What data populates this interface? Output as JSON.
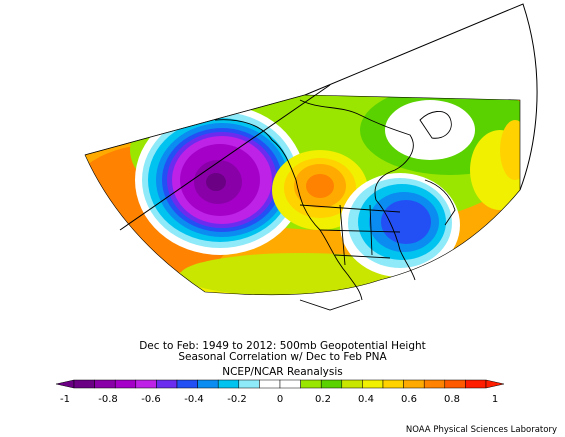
{
  "figure": {
    "title_line1": "Dec to Feb: 1949 to 2012: 500mb Geopotential Height",
    "title_line2": "Seasonal Correlation w/ Dec to Feb PNA",
    "dataset": "NCEP/NCAR Reanalysis",
    "credit": "NOAA Physical Sciences Laboratory"
  },
  "colorbar": {
    "min": -1,
    "max": 1,
    "step": 0.1,
    "tick_labels": [
      "-1",
      "-0.8",
      "-0.6",
      "-0.4",
      "-0.2",
      "0",
      "0.2",
      "0.4",
      "0.6",
      "0.8",
      "1"
    ],
    "colors": [
      "#6b0085",
      "#8a00a8",
      "#a400c8",
      "#bd22e6",
      "#6c2cf0",
      "#2350f5",
      "#0a8cf0",
      "#00c3f0",
      "#8eeaf8",
      "#ffffff",
      "#ffffff",
      "#9ae600",
      "#5ad200",
      "#c8e600",
      "#f0f000",
      "#ffd200",
      "#ffaa00",
      "#ff8200",
      "#ff5a00",
      "#ff1e00"
    ]
  },
  "map": {
    "projection": "north-polar stereographic sector",
    "region": "North Pacific and North America",
    "features": [
      {
        "name": "North Pacific negative center",
        "value": -0.9
      },
      {
        "name": "Western Canada positive center",
        "value": 0.7
      },
      {
        "name": "Southeastern US negative center",
        "value": -0.6
      },
      {
        "name": "Subtropical Pacific positive band",
        "value": 0.6
      }
    ]
  }
}
